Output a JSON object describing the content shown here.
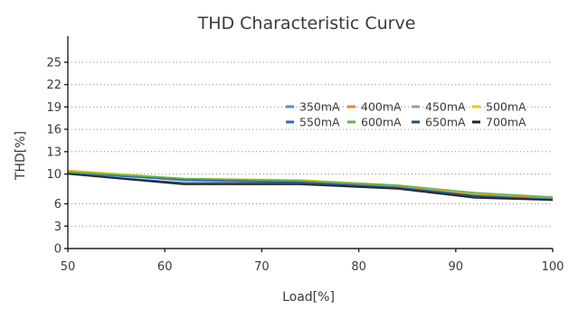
{
  "chart_data": {
    "type": "line",
    "title": "THD Characteristic Curve",
    "xlabel": "Load[%]",
    "ylabel": "THD[%]",
    "xlim": [
      50,
      100
    ],
    "ylim": [
      0,
      28.5
    ],
    "x_ticks": [
      50,
      60,
      70,
      80,
      90,
      100
    ],
    "y_ticks": [
      0,
      3,
      6,
      10,
      13,
      16,
      19,
      22,
      25
    ],
    "grid": true,
    "legend": "upper-right, inside plot, two rows",
    "x": [
      50,
      62,
      74,
      84,
      92,
      100
    ],
    "series": [
      {
        "name": "350mA",
        "color": "#4a90d9",
        "values": [
          10.2,
          9.2,
          9.0,
          8.3,
          7.2,
          6.8
        ]
      },
      {
        "name": "400mA",
        "color": "#e8822a",
        "values": [
          10.4,
          9.3,
          9.1,
          8.4,
          7.3,
          6.8
        ]
      },
      {
        "name": "450mA",
        "color": "#9a9a9a",
        "values": [
          10.3,
          9.1,
          8.9,
          8.2,
          7.0,
          6.6
        ]
      },
      {
        "name": "500mA",
        "color": "#f2c200",
        "values": [
          10.5,
          9.4,
          9.2,
          8.5,
          7.4,
          6.9
        ]
      },
      {
        "name": "550mA",
        "color": "#2f6bc4",
        "values": [
          10.1,
          9.2,
          8.9,
          8.2,
          7.1,
          6.6
        ]
      },
      {
        "name": "600mA",
        "color": "#5cb84a",
        "values": [
          10.3,
          9.4,
          9.1,
          8.5,
          7.5,
          6.9
        ]
      },
      {
        "name": "650mA",
        "color": "#1f4f7a",
        "values": [
          10.0,
          8.8,
          8.8,
          8.1,
          7.0,
          6.5
        ]
      },
      {
        "name": "700mA",
        "color": "#222222",
        "values": [
          10.0,
          8.6,
          8.6,
          8.0,
          6.8,
          6.5
        ]
      }
    ]
  }
}
